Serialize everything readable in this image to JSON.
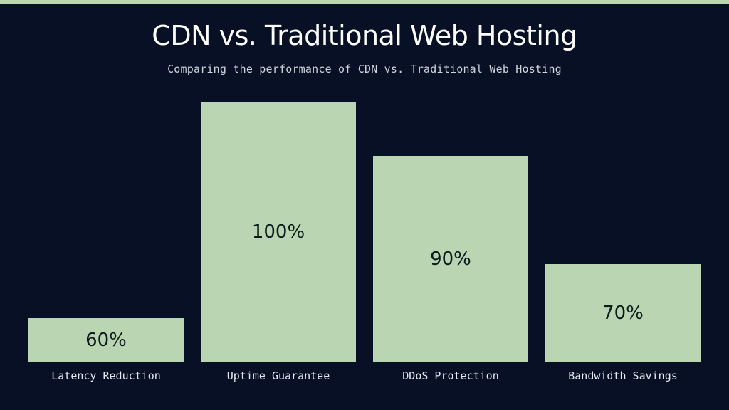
{
  "header": {
    "title": "CDN vs. Traditional Web Hosting",
    "subtitle": "Comparing the performance of CDN vs. Traditional Web Hosting"
  },
  "colors": {
    "background": "#071024",
    "bar": "#b9d5b2",
    "accent_strip": "#b9d5b2",
    "title": "#ffffff",
    "value_text": "#0d1a1c"
  },
  "chart_data": {
    "type": "bar",
    "title": "CDN vs. Traditional Web Hosting",
    "subtitle": "Comparing the performance of CDN vs. Traditional Web Hosting",
    "categories": [
      "Latency Reduction",
      "Uptime Guarantee",
      "DDoS Protection",
      "Bandwidth Savings"
    ],
    "values": [
      60,
      100,
      90,
      70
    ],
    "value_labels": [
      "60%",
      "100%",
      "90%",
      "70%"
    ],
    "xlabel": "",
    "ylabel": "",
    "ylim": [
      52,
      100
    ],
    "grid": false,
    "legend": null,
    "data_labels_inside_bars": true
  }
}
